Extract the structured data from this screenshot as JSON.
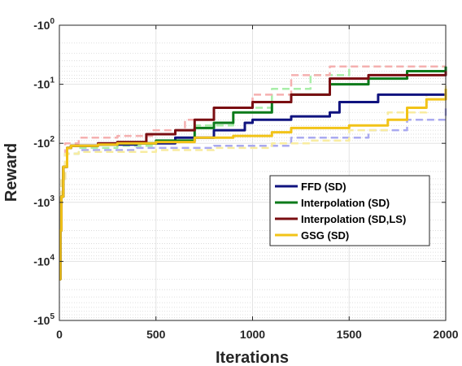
{
  "chart_data": {
    "type": "line",
    "xlabel": "Iterations",
    "ylabel": "Reward",
    "xlim": [
      0,
      2000
    ],
    "ylim_magnitude": [
      1,
      100000
    ],
    "y_scale": "log (negative values)",
    "x_ticks": [
      "0",
      "500",
      "1000",
      "1500",
      "2000"
    ],
    "y_ticks": [
      {
        "base": "-10",
        "exp": "0",
        "value": -1
      },
      {
        "base": "-10",
        "exp": "1",
        "value": -10
      },
      {
        "base": "-10",
        "exp": "2",
        "value": -100
      },
      {
        "base": "-10",
        "exp": "3",
        "value": -1000
      },
      {
        "base": "-10",
        "exp": "4",
        "value": -10000
      },
      {
        "base": "-10",
        "exp": "5",
        "value": -100000
      }
    ],
    "grid": true,
    "legend_position": "center-right",
    "series": [
      {
        "name": "FFD (SD)",
        "color": "#10137f",
        "x": [
          0,
          5,
          10,
          20,
          40,
          60,
          100,
          200,
          400,
          600,
          800,
          960,
          1000,
          1200,
          1400,
          1450,
          1500,
          1600,
          1650,
          1700,
          1800,
          1900,
          2000
        ],
        "y": [
          -20000,
          -3000,
          -800,
          -250,
          -120,
          -110,
          -110,
          -105,
          -100,
          -80,
          -60,
          -45,
          -40,
          -35,
          -30,
          -20,
          -20,
          -20,
          -15,
          -15,
          -15,
          -15,
          -15
        ]
      },
      {
        "name": "Interpolation (SD)",
        "color": "#0b7a1a",
        "x": [
          0,
          5,
          10,
          20,
          40,
          60,
          100,
          200,
          300,
          500,
          700,
          800,
          900,
          1100,
          1200,
          1400,
          1600,
          1800,
          2000
        ],
        "y": [
          -20000,
          -3000,
          -800,
          -250,
          -120,
          -110,
          -110,
          -105,
          -100,
          -90,
          -55,
          -45,
          -30,
          -20,
          -15,
          -10,
          -8,
          -6,
          -5
        ]
      },
      {
        "name": "Interpolation (SD,LS)",
        "color": "#7a0e12",
        "x": [
          0,
          5,
          10,
          20,
          40,
          60,
          100,
          200,
          300,
          450,
          600,
          700,
          800,
          1000,
          1200,
          1400,
          1600,
          1800,
          2000
        ],
        "y": [
          -20000,
          -3000,
          -800,
          -250,
          -120,
          -110,
          -110,
          -100,
          -95,
          -70,
          -60,
          -40,
          -25,
          -20,
          -15,
          -8,
          -7,
          -7,
          -6
        ]
      },
      {
        "name": "GSG (SD)",
        "color": "#f2c318",
        "x": [
          0,
          5,
          10,
          20,
          40,
          60,
          100,
          200,
          300,
          500,
          700,
          900,
          1100,
          1200,
          1500,
          1700,
          1800,
          1900,
          2000
        ],
        "y": [
          -20000,
          -3000,
          -800,
          -250,
          -120,
          -110,
          -110,
          -105,
          -100,
          -95,
          -80,
          -75,
          -65,
          -55,
          -50,
          -40,
          -25,
          -18,
          -12
        ]
      }
    ],
    "faint_series": [
      {
        "color": "#aaaaf0",
        "x": [
          0,
          10,
          30,
          100,
          400,
          800,
          1200,
          1600,
          1800,
          2000
        ],
        "y": [
          -3000,
          -400,
          -150,
          -130,
          -120,
          -110,
          -80,
          -60,
          -40,
          -25
        ]
      },
      {
        "color": "#a8eea8",
        "x": [
          0,
          10,
          30,
          100,
          300,
          500,
          700,
          900,
          1100,
          1300,
          1500,
          2000
        ],
        "y": [
          -3000,
          -400,
          -150,
          -120,
          -110,
          -90,
          -50,
          -25,
          -12,
          -7,
          -5,
          -5
        ]
      },
      {
        "color": "#f5b0b0",
        "x": [
          0,
          10,
          30,
          100,
          300,
          400,
          480,
          650,
          800,
          1000,
          1200,
          1400,
          1500,
          2000
        ],
        "y": [
          -3000,
          -400,
          -100,
          -80,
          -75,
          -75,
          -60,
          -40,
          -25,
          -15,
          -7,
          -5,
          -5,
          -5
        ]
      },
      {
        "color": "#f8eca0",
        "x": [
          0,
          10,
          30,
          100,
          500,
          800,
          1100,
          1300,
          1500,
          1700,
          1900,
          2000
        ],
        "y": [
          -3000,
          -400,
          -150,
          -140,
          -130,
          -120,
          -100,
          -90,
          -60,
          -30,
          -15,
          -10
        ]
      }
    ]
  }
}
